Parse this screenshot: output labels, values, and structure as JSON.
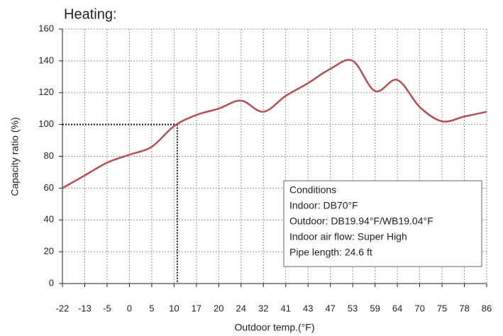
{
  "chart_data": {
    "type": "line",
    "title": "Heating:",
    "x_label": "Outdoor temp.(°F)",
    "y_label": "Capacity ratio (%)",
    "categories": [
      "-22",
      "-13",
      "-5",
      "0",
      "5",
      "10",
      "17",
      "20",
      "24",
      "32",
      "41",
      "43",
      "47",
      "53",
      "59",
      "64",
      "70",
      "75",
      "78",
      "86"
    ],
    "series": [
      {
        "name": "Capacity ratio",
        "color": "#b5504f",
        "values": [
          60,
          68,
          76,
          81,
          86,
          99,
          106,
          110,
          115,
          108,
          118,
          126,
          135,
          140,
          121,
          128,
          111,
          102,
          105,
          108
        ]
      }
    ],
    "ylim": [
      0,
      160
    ],
    "yticks": [
      0,
      20,
      40,
      60,
      80,
      100,
      120,
      140,
      160
    ],
    "grid": true,
    "reference_y": 100,
    "annotation": {
      "lines": [
        "Conditions",
        "Indoor: DB70°F",
        "Outdoor: DB19.94°F/WB19.04°F",
        "Indoor air flow: Super High",
        "Pipe length: 24.6 ft"
      ]
    }
  }
}
